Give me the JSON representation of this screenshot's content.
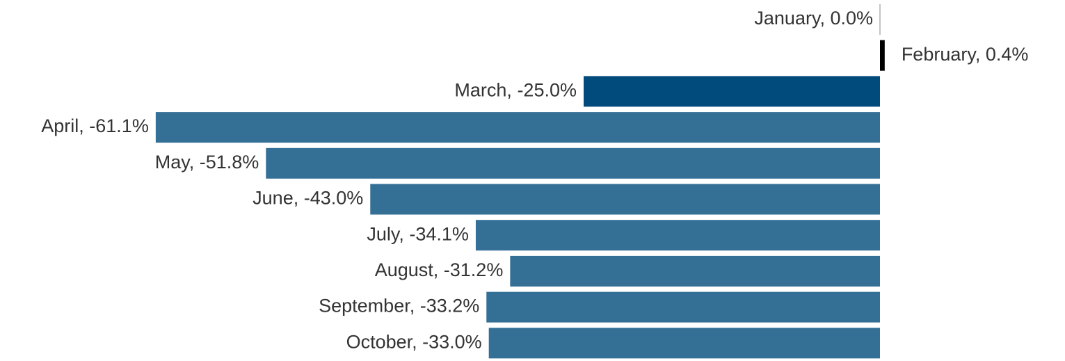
{
  "chart_data": {
    "type": "bar",
    "orientation": "horizontal",
    "values": [
      0.0,
      0.4,
      -25.0,
      -61.1,
      -51.8,
      -43.0,
      -34.1,
      -31.2,
      -33.2,
      -33.0
    ],
    "value_labels": [
      "January, 0.0%",
      "February, 0.4%",
      "March, -25.0%",
      "April, -61.1%",
      "May, -51.8%",
      "June, -43.0%",
      "July, -34.1%",
      "August, -31.2%",
      "September, -33.2%",
      "October, -33.0%"
    ],
    "colors": [
      "#888888",
      "#000000",
      "#004a7c",
      "#346f96",
      "#346f96",
      "#346f96",
      "#346f96",
      "#346f96",
      "#346f96",
      "#346f96"
    ]
  }
}
